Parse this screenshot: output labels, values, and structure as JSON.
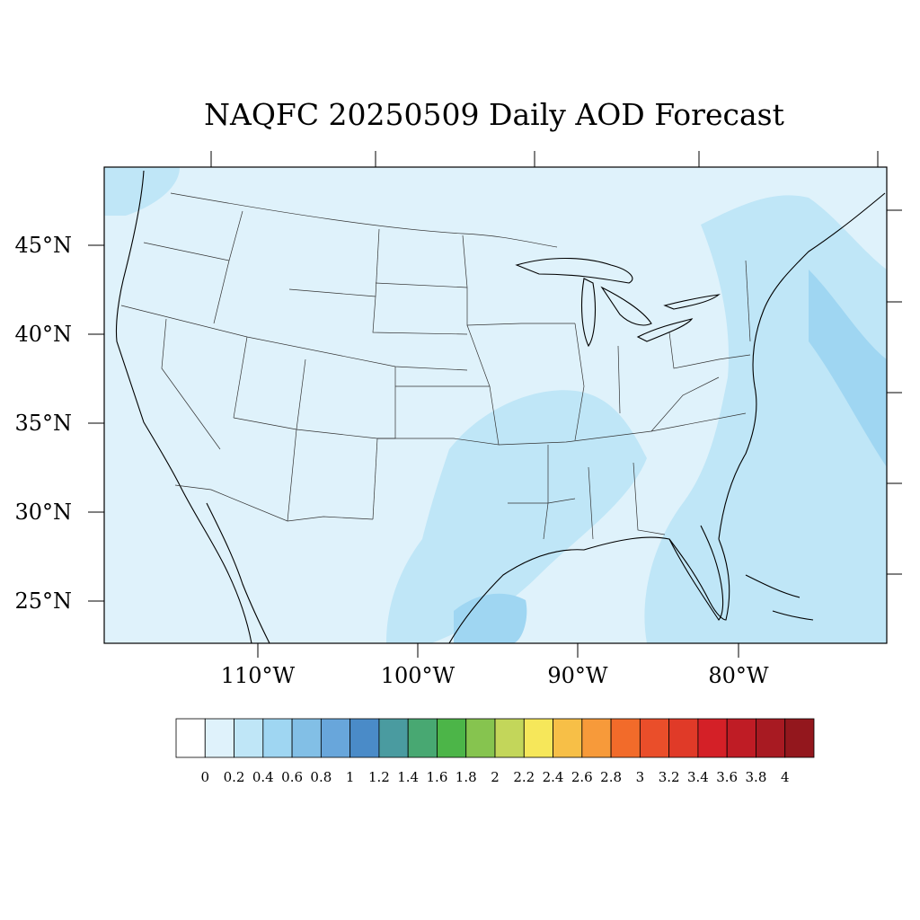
{
  "title": "NAQFC 20250509 Daily AOD Forecast",
  "lat_labels": [
    "45°N",
    "40°N",
    "35°N",
    "30°N",
    "25°N"
  ],
  "lon_labels": [
    "110°W",
    "100°W",
    "90°W",
    "80°W"
  ],
  "colorbar": {
    "labels": [
      "0",
      "0.2",
      "0.4",
      "0.6",
      "0.8",
      "1",
      "1.2",
      "1.4",
      "1.6",
      "1.8",
      "2",
      "2.2",
      "2.4",
      "2.6",
      "2.8",
      "3",
      "3.2",
      "3.4",
      "3.6",
      "3.8",
      "4"
    ],
    "colors": [
      "#ffffff",
      "#dff2fb",
      "#bfe6f7",
      "#9fd6f2",
      "#82bfe6",
      "#68a6db",
      "#4a8bc8",
      "#4a9ba0",
      "#48a872",
      "#4cb548",
      "#86c44f",
      "#c3d65a",
      "#f6e75a",
      "#f7bf47",
      "#f79a3a",
      "#f26b2a",
      "#ea4e2a",
      "#e03a28",
      "#d42027",
      "#bf1c25",
      "#a81a22",
      "#93171d"
    ]
  },
  "map_colors": {
    "background": "#dff2fb",
    "light": "#bfe6f7",
    "medium": "#9fd6f2"
  }
}
